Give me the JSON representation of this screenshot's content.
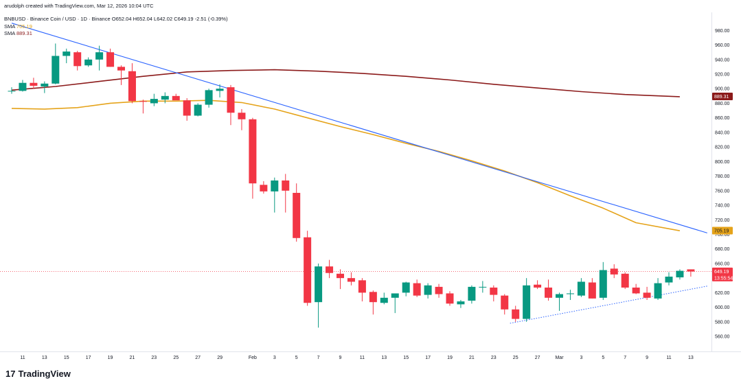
{
  "header": {
    "created_by": "arudolph created with TradingView.com, Mar 12, 2026 10:04 UTC",
    "symbol_line": "BNBUSD · Binance Coin / USD · 1D · Binance",
    "ohlc": "O652.04  H652.04  L642.02  C649.19  -2.51 (-0.39%)",
    "sma1_label": "SMA",
    "sma1_value": "705.19",
    "sma2_label": "SMA",
    "sma2_value": "889.31"
  },
  "footer": {
    "brand": "TradingView"
  },
  "colors": {
    "up": "#089981",
    "down": "#f23645",
    "sma_gold": "#e5a31a",
    "sma_red": "#8b1a1a",
    "trendline_blue": "#2962ff",
    "support_dotted": "#2962ff"
  },
  "price_tags": {
    "sma2": "889.31",
    "sma1": "705.19",
    "last_price": "649.19",
    "countdown": "13:55:54"
  },
  "chart_data": {
    "type": "candlestick",
    "title": "",
    "ylim": [
      548,
      990
    ],
    "yticks": [
      560,
      580,
      600,
      620,
      640,
      660,
      680,
      700,
      720,
      740,
      760,
      780,
      800,
      820,
      840,
      860,
      880,
      900,
      920,
      940,
      960,
      980
    ],
    "xticks": [
      {
        "label": "11",
        "idx": 1
      },
      {
        "label": "13",
        "idx": 3
      },
      {
        "label": "15",
        "idx": 5
      },
      {
        "label": "17",
        "idx": 7
      },
      {
        "label": "19",
        "idx": 9
      },
      {
        "label": "21",
        "idx": 11
      },
      {
        "label": "23",
        "idx": 13
      },
      {
        "label": "25",
        "idx": 15
      },
      {
        "label": "27",
        "idx": 17
      },
      {
        "label": "29",
        "idx": 19
      },
      {
        "label": "Feb",
        "idx": 22
      },
      {
        "label": "3",
        "idx": 24
      },
      {
        "label": "5",
        "idx": 26
      },
      {
        "label": "7",
        "idx": 28
      },
      {
        "label": "9",
        "idx": 30
      },
      {
        "label": "11",
        "idx": 32
      },
      {
        "label": "13",
        "idx": 34
      },
      {
        "label": "15",
        "idx": 36
      },
      {
        "label": "17",
        "idx": 38
      },
      {
        "label": "19",
        "idx": 40
      },
      {
        "label": "21",
        "idx": 42
      },
      {
        "label": "23",
        "idx": 44
      },
      {
        "label": "25",
        "idx": 46
      },
      {
        "label": "27",
        "idx": 48
      },
      {
        "label": "Mar",
        "idx": 50
      },
      {
        "label": "3",
        "idx": 52
      },
      {
        "label": "5",
        "idx": 54
      },
      {
        "label": "7",
        "idx": 56
      },
      {
        "label": "9",
        "idx": 58
      },
      {
        "label": "11",
        "idx": 60
      },
      {
        "label": "13",
        "idx": 62
      }
    ],
    "candles": [
      {
        "o": 897,
        "h": 902,
        "l": 893,
        "c": 897
      },
      {
        "o": 897,
        "h": 912,
        "l": 896,
        "c": 908
      },
      {
        "o": 908,
        "h": 915,
        "l": 900,
        "c": 904
      },
      {
        "o": 903,
        "h": 910,
        "l": 894,
        "c": 907
      },
      {
        "o": 907,
        "h": 962,
        "l": 906,
        "c": 945
      },
      {
        "o": 945,
        "h": 955,
        "l": 935,
        "c": 951
      },
      {
        "o": 950,
        "h": 952,
        "l": 925,
        "c": 931
      },
      {
        "o": 932,
        "h": 943,
        "l": 930,
        "c": 940
      },
      {
        "o": 940,
        "h": 959,
        "l": 925,
        "c": 950
      },
      {
        "o": 950,
        "h": 955,
        "l": 930,
        "c": 930
      },
      {
        "o": 930,
        "h": 932,
        "l": 905,
        "c": 925
      },
      {
        "o": 924,
        "h": 935,
        "l": 880,
        "c": 883
      },
      {
        "o": 883,
        "h": 885,
        "l": 866,
        "c": 882
      },
      {
        "o": 880,
        "h": 893,
        "l": 876,
        "c": 886
      },
      {
        "o": 885,
        "h": 895,
        "l": 880,
        "c": 890
      },
      {
        "o": 890,
        "h": 893,
        "l": 885,
        "c": 884
      },
      {
        "o": 884,
        "h": 887,
        "l": 856,
        "c": 863
      },
      {
        "o": 863,
        "h": 880,
        "l": 862,
        "c": 878
      },
      {
        "o": 878,
        "h": 900,
        "l": 874,
        "c": 898
      },
      {
        "o": 897,
        "h": 906,
        "l": 888,
        "c": 900
      },
      {
        "o": 902,
        "h": 905,
        "l": 850,
        "c": 867
      },
      {
        "o": 867,
        "h": 872,
        "l": 843,
        "c": 858
      },
      {
        "o": 858,
        "h": 860,
        "l": 749,
        "c": 770
      },
      {
        "o": 768,
        "h": 773,
        "l": 756,
        "c": 759
      },
      {
        "o": 759,
        "h": 778,
        "l": 730,
        "c": 774
      },
      {
        "o": 774,
        "h": 783,
        "l": 730,
        "c": 760
      },
      {
        "o": 757,
        "h": 770,
        "l": 690,
        "c": 695
      },
      {
        "o": 696,
        "h": 705,
        "l": 602,
        "c": 606
      },
      {
        "o": 607,
        "h": 660,
        "l": 572,
        "c": 656
      },
      {
        "o": 656,
        "h": 665,
        "l": 640,
        "c": 647
      },
      {
        "o": 646,
        "h": 652,
        "l": 625,
        "c": 640
      },
      {
        "o": 640,
        "h": 648,
        "l": 630,
        "c": 635
      },
      {
        "o": 637,
        "h": 640,
        "l": 608,
        "c": 620
      },
      {
        "o": 621,
        "h": 623,
        "l": 590,
        "c": 607
      },
      {
        "o": 606,
        "h": 620,
        "l": 604,
        "c": 613
      },
      {
        "o": 613,
        "h": 618,
        "l": 592,
        "c": 619
      },
      {
        "o": 620,
        "h": 635,
        "l": 615,
        "c": 634
      },
      {
        "o": 633,
        "h": 638,
        "l": 614,
        "c": 616
      },
      {
        "o": 617,
        "h": 633,
        "l": 612,
        "c": 630
      },
      {
        "o": 628,
        "h": 632,
        "l": 613,
        "c": 618
      },
      {
        "o": 619,
        "h": 622,
        "l": 602,
        "c": 605
      },
      {
        "o": 604,
        "h": 610,
        "l": 599,
        "c": 608
      },
      {
        "o": 609,
        "h": 630,
        "l": 605,
        "c": 628
      },
      {
        "o": 628,
        "h": 636,
        "l": 620,
        "c": 628
      },
      {
        "o": 627,
        "h": 630,
        "l": 608,
        "c": 617
      },
      {
        "o": 616,
        "h": 618,
        "l": 590,
        "c": 597
      },
      {
        "o": 597,
        "h": 602,
        "l": 580,
        "c": 584
      },
      {
        "o": 584,
        "h": 640,
        "l": 580,
        "c": 630
      },
      {
        "o": 631,
        "h": 637,
        "l": 625,
        "c": 627
      },
      {
        "o": 627,
        "h": 638,
        "l": 609,
        "c": 613
      },
      {
        "o": 613,
        "h": 620,
        "l": 595,
        "c": 618
      },
      {
        "o": 618,
        "h": 624,
        "l": 610,
        "c": 619
      },
      {
        "o": 616,
        "h": 640,
        "l": 614,
        "c": 635
      },
      {
        "o": 634,
        "h": 640,
        "l": 612,
        "c": 612
      },
      {
        "o": 613,
        "h": 662,
        "l": 610,
        "c": 651
      },
      {
        "o": 653,
        "h": 659,
        "l": 640,
        "c": 645
      },
      {
        "o": 646,
        "h": 648,
        "l": 625,
        "c": 627
      },
      {
        "o": 627,
        "h": 632,
        "l": 618,
        "c": 619
      },
      {
        "o": 620,
        "h": 628,
        "l": 610,
        "c": 613
      },
      {
        "o": 612,
        "h": 640,
        "l": 610,
        "c": 633
      },
      {
        "o": 634,
        "h": 648,
        "l": 630,
        "c": 642
      },
      {
        "o": 641,
        "h": 652,
        "l": 638,
        "c": 650
      },
      {
        "o": 652,
        "h": 652,
        "l": 642,
        "c": 649
      }
    ],
    "sma_gold": [
      {
        "idx": 0,
        "v": 873
      },
      {
        "idx": 3,
        "v": 872
      },
      {
        "idx": 6,
        "v": 874
      },
      {
        "idx": 9,
        "v": 880
      },
      {
        "idx": 12,
        "v": 883
      },
      {
        "idx": 15,
        "v": 883
      },
      {
        "idx": 18,
        "v": 884
      },
      {
        "idx": 21,
        "v": 881
      },
      {
        "idx": 24,
        "v": 872
      },
      {
        "idx": 27,
        "v": 860
      },
      {
        "idx": 30,
        "v": 848
      },
      {
        "idx": 33,
        "v": 837
      },
      {
        "idx": 36,
        "v": 825
      },
      {
        "idx": 39,
        "v": 814
      },
      {
        "idx": 42,
        "v": 801
      },
      {
        "idx": 45,
        "v": 787
      },
      {
        "idx": 48,
        "v": 771
      },
      {
        "idx": 51,
        "v": 753
      },
      {
        "idx": 54,
        "v": 736
      },
      {
        "idx": 57,
        "v": 716
      },
      {
        "idx": 61,
        "v": 705
      }
    ],
    "sma_red": [
      {
        "idx": 0,
        "v": 898
      },
      {
        "idx": 4,
        "v": 903
      },
      {
        "idx": 8,
        "v": 910
      },
      {
        "idx": 12,
        "v": 917
      },
      {
        "idx": 16,
        "v": 923
      },
      {
        "idx": 20,
        "v": 925
      },
      {
        "idx": 24,
        "v": 926
      },
      {
        "idx": 28,
        "v": 924
      },
      {
        "idx": 32,
        "v": 921
      },
      {
        "idx": 36,
        "v": 917
      },
      {
        "idx": 40,
        "v": 912
      },
      {
        "idx": 44,
        "v": 906
      },
      {
        "idx": 48,
        "v": 901
      },
      {
        "idx": 52,
        "v": 896
      },
      {
        "idx": 56,
        "v": 892
      },
      {
        "idx": 61,
        "v": 889
      }
    ],
    "trendline": [
      {
        "idx": 0,
        "v": 990
      },
      {
        "idx": 63.5,
        "v": 702
      }
    ],
    "support_line": [
      {
        "idx": 45.5,
        "v": 578
      },
      {
        "idx": 63.5,
        "v": 629
      }
    ],
    "last_price_line": 649.19
  }
}
